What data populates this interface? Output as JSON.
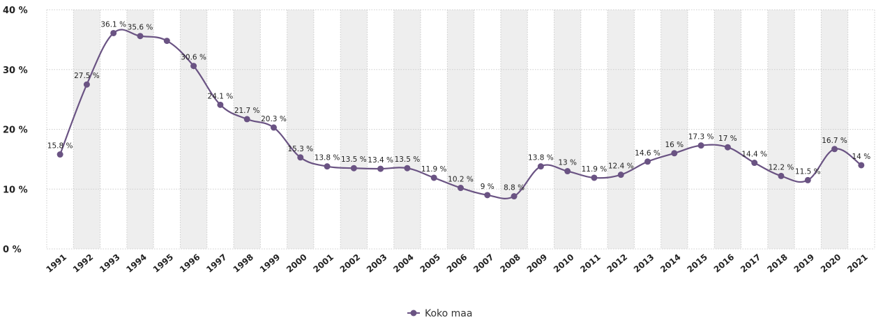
{
  "chart_data": {
    "type": "line",
    "title": "",
    "xlabel": "",
    "ylabel": "",
    "ylim": [
      0,
      40
    ],
    "yticks": [
      "0 %",
      "10 %",
      "20 %",
      "30 %",
      "40 %"
    ],
    "ytick_values": [
      0,
      10,
      20,
      30,
      40
    ],
    "grid": "dotted",
    "alternating_column_shading": true,
    "legend_position": "bottom-center",
    "categories": [
      "1991",
      "1992",
      "1993",
      "1994",
      "1995",
      "1996",
      "1997",
      "1998",
      "1999",
      "2000",
      "2001",
      "2002",
      "2003",
      "2004",
      "2005",
      "2006",
      "2007",
      "2008",
      "2009",
      "2010",
      "2011",
      "2012",
      "2013",
      "2014",
      "2015",
      "2016",
      "2017",
      "2018",
      "2019",
      "2020",
      "2021"
    ],
    "series": [
      {
        "name": "Koko maa",
        "color": "#6a5383",
        "values": [
          15.8,
          27.5,
          36.1,
          35.6,
          34.8,
          30.6,
          24.1,
          21.7,
          20.3,
          15.3,
          13.8,
          13.5,
          13.4,
          13.5,
          11.9,
          10.2,
          9,
          8.8,
          13.8,
          13,
          11.9,
          12.4,
          14.6,
          16,
          17.3,
          17,
          14.4,
          12.2,
          11.5,
          16.7,
          14
        ],
        "labels": [
          "15.8 %",
          "27.5 %",
          "36.1 %",
          "35.6 %",
          "",
          "30.6 %",
          "24.1 %",
          "21.7 %",
          "20.3 %",
          "15.3 %",
          "13.8 %",
          "13.5 %",
          "13.4 %",
          "13.5 %",
          "11.9 %",
          "10.2 %",
          "9 %",
          "8.8 %",
          "13.8 %",
          "13 %",
          "11.9 %",
          "12.4 %",
          "14.6 %",
          "16 %",
          "17.3 %",
          "17 %",
          "14.4 %",
          "12.2 %",
          "11.5 %",
          "16.7 %",
          "14 %"
        ]
      }
    ]
  },
  "colors": {
    "line": "#6a5383",
    "shade": "#eeeeee",
    "grid": "#cccccc"
  }
}
